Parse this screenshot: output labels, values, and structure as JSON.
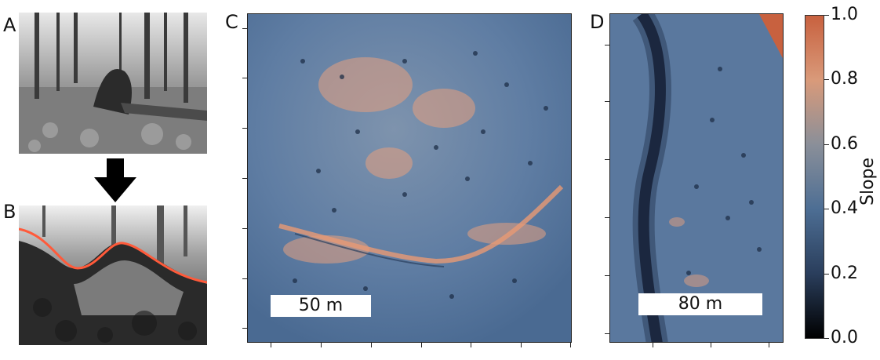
{
  "panels": {
    "a": {
      "label": "A"
    },
    "b": {
      "label": "B"
    },
    "c": {
      "label": "C",
      "scale_label": "50 m"
    },
    "d": {
      "label": "D",
      "scale_label": "80 m"
    }
  },
  "colorbar": {
    "title": "Slope",
    "ticks": [
      "1.0",
      "0.8",
      "0.6",
      "0.4",
      "0.2",
      "0.0"
    ],
    "colors": {
      "high": "#c8613f",
      "mid_high": "#d99a7a",
      "mid": "#8a8f99",
      "mid_low": "#4d6e94",
      "low": "#000000"
    }
  },
  "icons": {
    "arrow": "down-arrow-icon"
  },
  "colors": {
    "contour_line": "#ff5a3a",
    "map_base": "#5f7da3",
    "map_light": "#e6a07f"
  }
}
